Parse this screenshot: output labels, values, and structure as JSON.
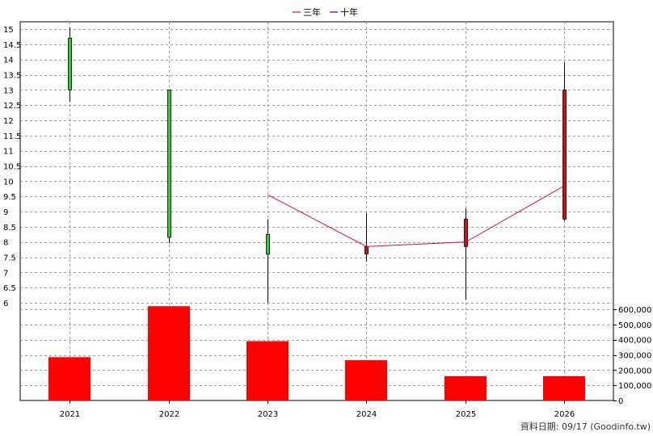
{
  "chart_data": {
    "type": "candlestick",
    "categories": [
      "2021",
      "2022",
      "2023",
      "2024",
      "2025",
      "2026"
    ],
    "legend": [
      {
        "name": "三年",
        "color": "#c0145a"
      },
      {
        "name": "十年",
        "color": "#4b0082"
      }
    ],
    "price_axis": {
      "ylim": [
        5.8,
        15.2
      ],
      "ticks": [
        "15",
        "14.5",
        "14",
        "13.5",
        "13",
        "12.5",
        "12",
        "11.5",
        "11",
        "10.5",
        "10",
        "9.5",
        "9",
        "8.5",
        "8",
        "7.5",
        "7",
        "6.5",
        "6"
      ]
    },
    "candles": [
      {
        "year": "2021",
        "open": 13.0,
        "close": 14.7,
        "high": 15.05,
        "low": 12.6,
        "color": "#33cc33"
      },
      {
        "year": "2022",
        "open": 8.15,
        "close": 13.0,
        "high": 13.0,
        "low": 7.95,
        "color": "#33cc33"
      },
      {
        "year": "2023",
        "open": 7.6,
        "close": 8.25,
        "high": 8.75,
        "low": 6.0,
        "color": "#33cc33"
      },
      {
        "year": "2024",
        "open": 7.85,
        "close": 7.6,
        "high": 8.95,
        "low": 7.35,
        "color": "#cc1111"
      },
      {
        "year": "2025",
        "open": 8.75,
        "close": 7.85,
        "high": 9.1,
        "low": 6.1,
        "color": "#cc1111"
      },
      {
        "year": "2026",
        "open": 13.0,
        "close": 8.75,
        "high": 13.9,
        "low": 8.7,
        "color": "#cc1111"
      }
    ],
    "line_series": [
      {
        "name": "三年",
        "x": [
          "2023",
          "2024",
          "2025",
          "2026"
        ],
        "values": [
          9.55,
          7.85,
          8.0,
          9.85
        ]
      }
    ],
    "volume_axis": {
      "ylim": [
        0,
        650000
      ],
      "ticks": [
        0,
        100000,
        200000,
        300000,
        400000,
        500000,
        600000
      ],
      "tick_labels": [
        "0",
        "100,000",
        "200,000",
        "300,000",
        "400,000",
        "500,000",
        "600,000"
      ]
    },
    "volume": [
      285000,
      620000,
      390000,
      265000,
      160000,
      160000
    ],
    "volume_color": "#ff0000",
    "grid": true
  },
  "footer": "資料日期: 09/17  (Goodinfo.tw)"
}
